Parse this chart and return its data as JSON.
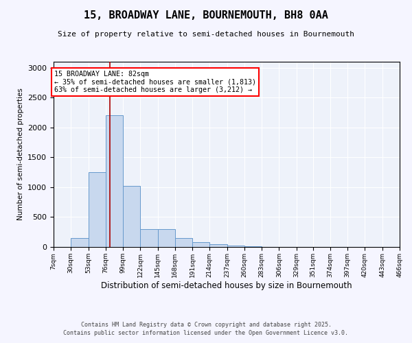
{
  "title_line1": "15, BROADWAY LANE, BOURNEMOUTH, BH8 0AA",
  "title_line2": "Size of property relative to semi-detached houses in Bournemouth",
  "xlabel": "Distribution of semi-detached houses by size in Bournemouth",
  "ylabel": "Number of semi-detached properties",
  "footer_line1": "Contains HM Land Registry data © Crown copyright and database right 2025.",
  "footer_line2": "Contains public sector information licensed under the Open Government Licence v3.0.",
  "annotation_title": "15 BROADWAY LANE: 82sqm",
  "annotation_line2": "← 35% of semi-detached houses are smaller (1,813)",
  "annotation_line3": "63% of semi-detached houses are larger (3,212) →",
  "property_size": 82,
  "bin_edges": [
    7,
    30,
    53,
    76,
    99,
    122,
    145,
    168,
    191,
    214,
    237,
    260,
    283,
    306,
    329,
    351,
    374,
    397,
    420,
    443,
    466
  ],
  "bar_heights": [
    5,
    150,
    1250,
    2200,
    1020,
    300,
    300,
    150,
    75,
    50,
    20,
    10,
    5,
    5,
    3,
    3,
    2,
    1,
    1,
    1
  ],
  "bar_color": "#c8d8ee",
  "bar_edge_color": "#6699cc",
  "red_line_color": "#aa0000",
  "background_color": "#eef2fa",
  "grid_color": "#ffffff",
  "fig_bg_color": "#f5f5ff",
  "ylim": [
    0,
    3100
  ],
  "yticks": [
    0,
    500,
    1000,
    1500,
    2000,
    2500,
    3000
  ]
}
